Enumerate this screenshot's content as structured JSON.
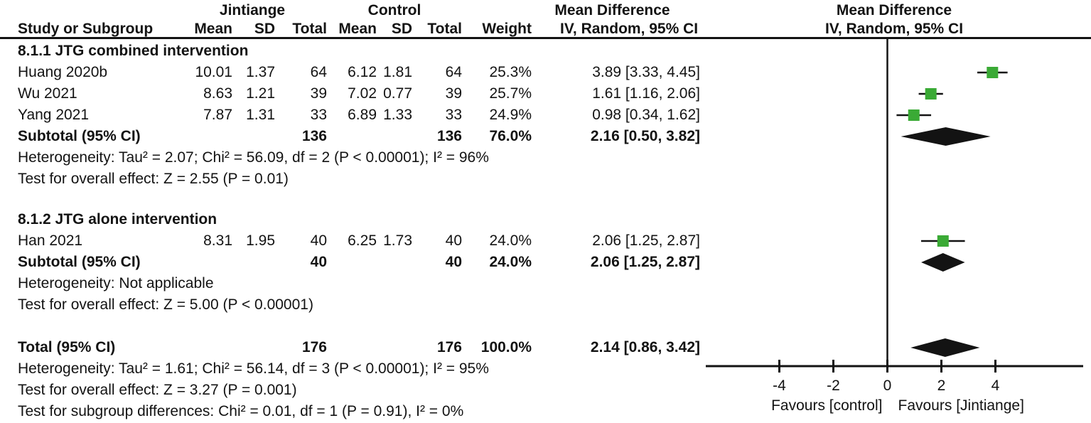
{
  "headers": {
    "experimental_group": "Jintiange",
    "control_group": "Control",
    "md_left": "Mean Difference",
    "md_right": "Mean Difference",
    "study": "Study or Subgroup",
    "mean1": "Mean",
    "sd1": "SD",
    "total1": "Total",
    "mean2": "Mean",
    "sd2": "SD",
    "total2": "Total",
    "weight": "Weight",
    "method_left": "IV, Random, 95% CI",
    "method_right": "IV, Random, 95% CI"
  },
  "rows": [
    {
      "type": "subgroup",
      "text": "8.1.1 JTG combined intervention"
    },
    {
      "type": "study",
      "cells": [
        "Huang 2020b",
        "10.01",
        "1.37",
        "64",
        "6.12",
        "1.81",
        "64",
        "25.3%",
        "3.89 [3.33, 4.45]"
      ]
    },
    {
      "type": "study",
      "cells": [
        "Wu 2021",
        "8.63",
        "1.21",
        "39",
        "7.02",
        "0.77",
        "39",
        "25.7%",
        "1.61 [1.16, 2.06]"
      ]
    },
    {
      "type": "study",
      "cells": [
        "Yang 2021",
        "7.87",
        "1.31",
        "33",
        "6.89",
        "1.33",
        "33",
        "24.9%",
        "0.98 [0.34, 1.62]"
      ]
    },
    {
      "type": "subtotal",
      "cells": [
        "Subtotal (95% CI)",
        "",
        "",
        "136",
        "",
        "",
        "136",
        "76.0%",
        "2.16 [0.50, 3.82]"
      ]
    },
    {
      "type": "note",
      "text": "Heterogeneity: Tau² = 2.07; Chi² = 56.09, df = 2 (P < 0.00001); I² = 96%"
    },
    {
      "type": "note",
      "text": "Test for overall effect: Z = 2.55 (P = 0.01)"
    },
    {
      "type": "blank1"
    },
    {
      "type": "subgroup",
      "text": "8.1.2 JTG alone intervention"
    },
    {
      "type": "study",
      "cells": [
        "Han 2021",
        "8.31",
        "1.95",
        "40",
        "6.25",
        "1.73",
        "40",
        "24.0%",
        "2.06 [1.25, 2.87]"
      ]
    },
    {
      "type": "subtotal",
      "cells": [
        "Subtotal (95% CI)",
        "",
        "",
        "40",
        "",
        "",
        "40",
        "24.0%",
        "2.06 [1.25, 2.87]"
      ]
    },
    {
      "type": "note",
      "text": "Heterogeneity: Not applicable"
    },
    {
      "type": "note",
      "text": "Test for overall effect: Z = 5.00 (P < 0.00001)"
    },
    {
      "type": "blank2"
    },
    {
      "type": "total",
      "cells": [
        "Total (95% CI)",
        "",
        "",
        "176",
        "",
        "",
        "176",
        "100.0%",
        "2.14 [0.86, 3.42]"
      ]
    },
    {
      "type": "note",
      "text": "Heterogeneity: Tau² = 1.61; Chi² = 56.14, df = 3 (P < 0.00001); I² = 95%"
    },
    {
      "type": "note",
      "text": "Test for overall effect: Z = 3.27 (P = 0.001)"
    },
    {
      "type": "note",
      "text": "Test for subgroup differences: Chi² = 0.01, df = 1 (P = 0.91), I² = 0%"
    }
  ],
  "chart_data": {
    "type": "forest",
    "effect_measure": "Mean Difference, IV, Random, 95% CI",
    "x_ticks": [
      -4,
      -2,
      0,
      2,
      4
    ],
    "x_axis_range": [
      -6.7,
      7.3
    ],
    "favours_left": "Favours [control]",
    "favours_right": "Favours [Jintiange]",
    "marker_color": "#3aaa35",
    "line_color": "#131313",
    "studies": [
      {
        "row_index": 1,
        "marker": "square",
        "label": "Huang 2020b",
        "est": 3.89,
        "lo": 3.33,
        "hi": 4.45,
        "weight_pct": 25.3
      },
      {
        "row_index": 2,
        "marker": "square",
        "label": "Wu 2021",
        "est": 1.61,
        "lo": 1.16,
        "hi": 2.06,
        "weight_pct": 25.7
      },
      {
        "row_index": 3,
        "marker": "square",
        "label": "Yang 2021",
        "est": 0.98,
        "lo": 0.34,
        "hi": 1.62,
        "weight_pct": 24.9
      },
      {
        "row_index": 4,
        "marker": "diamond",
        "label": "Subtotal (95% CI)",
        "est": 2.16,
        "lo": 0.5,
        "hi": 3.82,
        "weight_pct": 76.0
      },
      {
        "row_index": 9,
        "marker": "square",
        "label": "Han 2021",
        "est": 2.06,
        "lo": 1.25,
        "hi": 2.87,
        "weight_pct": 24.0
      },
      {
        "row_index": 10,
        "marker": "diamond",
        "label": "Subtotal (95% CI)",
        "est": 2.06,
        "lo": 1.25,
        "hi": 2.87,
        "weight_pct": 24.0
      },
      {
        "row_index": 14,
        "marker": "diamond",
        "label": "Total (95% CI)",
        "est": 2.14,
        "lo": 0.86,
        "hi": 3.42,
        "weight_pct": 100.0
      }
    ]
  }
}
